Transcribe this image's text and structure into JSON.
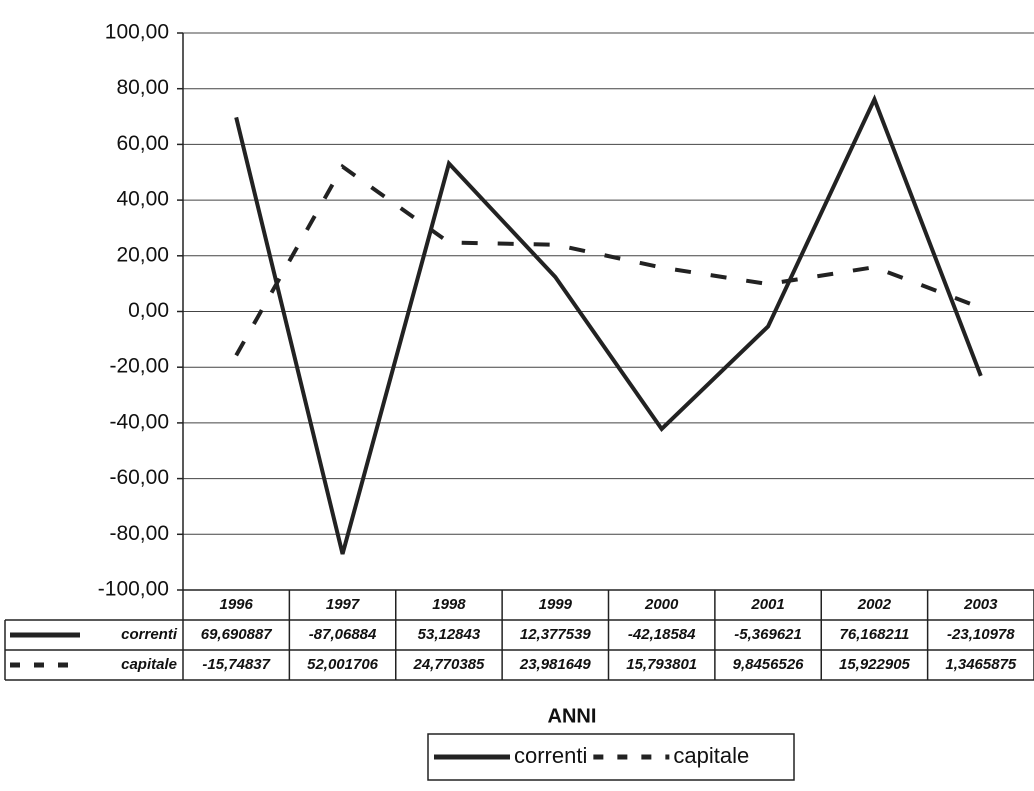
{
  "chart_data": {
    "type": "line",
    "categories": [
      "1996",
      "1997",
      "1998",
      "1999",
      "2000",
      "2001",
      "2002",
      "2003"
    ],
    "series": [
      {
        "name": "correnti",
        "color": "#222222",
        "dash": false,
        "values": [
          69.690887,
          -87.06884,
          53.12843,
          12.377539,
          -42.18584,
          -5.369621,
          76.168211,
          -23.10978
        ],
        "value_labels": [
          "69,690887",
          "-87,06884",
          "53,12843",
          "12,377539",
          "-42,18584",
          "-5,369621",
          "76,168211",
          "-23,10978"
        ]
      },
      {
        "name": "capitale",
        "color": "#222222",
        "dash": true,
        "values": [
          -15.74837,
          52.001706,
          24.770385,
          23.981649,
          15.793801,
          9.8456526,
          15.922905,
          1.3465875
        ],
        "value_labels": [
          "-15,74837",
          "52,001706",
          "24,770385",
          "23,981649",
          "15,793801",
          "9,8456526",
          "15,922905",
          "1,3465875"
        ]
      }
    ],
    "x_label": "ANNI",
    "ylim": [
      -100,
      100
    ],
    "yticks": [
      {
        "value": -100,
        "label": "-100,00"
      },
      {
        "value": -80,
        "label": "-80,00"
      },
      {
        "value": -60,
        "label": "-60,00"
      },
      {
        "value": -40,
        "label": "-40,00"
      },
      {
        "value": -20,
        "label": "-20,00"
      },
      {
        "value": 0,
        "label": "0,00"
      },
      {
        "value": 20,
        "label": "20,00"
      },
      {
        "value": 40,
        "label": "40,00"
      },
      {
        "value": 60,
        "label": "60,00"
      },
      {
        "value": 80,
        "label": "80,00"
      },
      {
        "value": 100,
        "label": "100,00"
      }
    ],
    "grid": true
  }
}
